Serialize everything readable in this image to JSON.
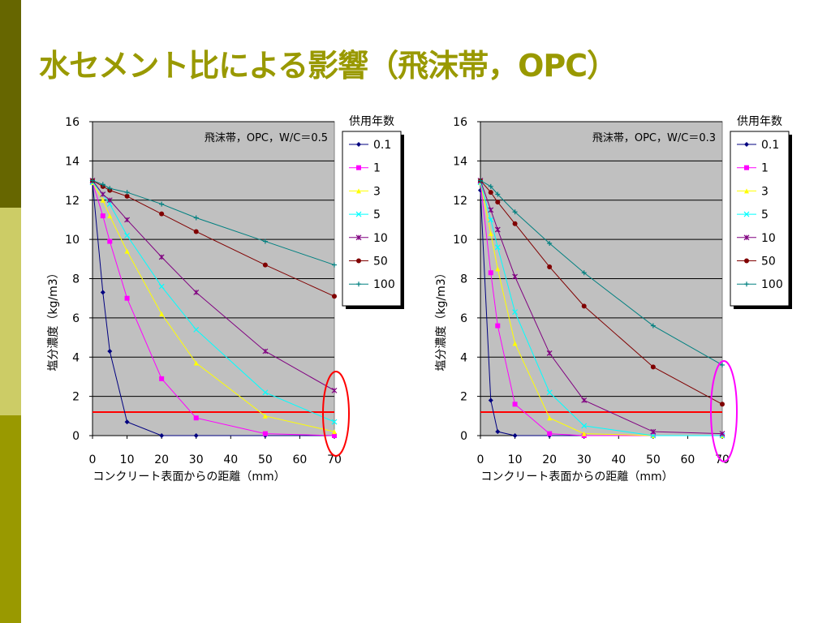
{
  "slide": {
    "title": "水セメント比による影響（飛沫帯，OPC）",
    "colors": {
      "title": "#999900",
      "sidebar_dark": "#666600",
      "sidebar_light": "#CCCC66",
      "sidebar_mid": "#999900"
    }
  },
  "chart_data": [
    {
      "type": "line",
      "title": "",
      "annotation": "飛沫帯，OPC，W/C＝0.5",
      "xlabel": "コンクリート表面からの距離（mm）",
      "ylabel": "塩分濃度（kg/m3）",
      "xlim": [
        0,
        70
      ],
      "ylim": [
        0,
        16
      ],
      "xticks": [
        0,
        10,
        20,
        30,
        40,
        50,
        60,
        70
      ],
      "yticks": [
        0,
        2,
        4,
        6,
        8,
        10,
        12,
        14,
        16
      ],
      "grid": true,
      "legend_title": "供用年数",
      "legend_position": "right",
      "threshold_line": {
        "value": 1.2,
        "color": "#FF0000"
      },
      "highlight_ellipse": {
        "x": 70,
        "color": "#FF0000"
      },
      "series": [
        {
          "name": "0.1",
          "color": "#000080",
          "marker": "diamond",
          "x": [
            0,
            3,
            5,
            10,
            20,
            30,
            50,
            70
          ],
          "y": [
            12.9,
            7.3,
            4.3,
            0.7,
            0.0,
            0.0,
            0.0,
            0.0
          ]
        },
        {
          "name": "1",
          "color": "#FF00FF",
          "marker": "square",
          "x": [
            0,
            3,
            5,
            10,
            20,
            30,
            50,
            70
          ],
          "y": [
            12.9,
            11.2,
            9.9,
            7.0,
            2.9,
            0.9,
            0.1,
            0.0
          ]
        },
        {
          "name": "3",
          "color": "#FFFF00",
          "marker": "triangle",
          "x": [
            0,
            3,
            5,
            10,
            20,
            30,
            50,
            70
          ],
          "y": [
            12.9,
            12.0,
            11.2,
            9.4,
            6.2,
            3.7,
            1.0,
            0.2
          ]
        },
        {
          "name": "5",
          "color": "#00FFFF",
          "marker": "x",
          "x": [
            0,
            3,
            5,
            10,
            20,
            30,
            50,
            70
          ],
          "y": [
            12.9,
            12.3,
            11.8,
            10.2,
            7.6,
            5.4,
            2.2,
            0.7
          ]
        },
        {
          "name": "10",
          "color": "#800080",
          "marker": "star",
          "x": [
            0,
            3,
            5,
            10,
            20,
            30,
            50,
            70
          ],
          "y": [
            13.0,
            12.3,
            12.0,
            11.0,
            9.1,
            7.3,
            4.3,
            2.3
          ]
        },
        {
          "name": "50",
          "color": "#800000",
          "marker": "circle",
          "x": [
            0,
            3,
            5,
            10,
            20,
            30,
            50,
            70
          ],
          "y": [
            13.0,
            12.7,
            12.5,
            12.2,
            11.3,
            10.4,
            8.7,
            7.1
          ]
        },
        {
          "name": "100",
          "color": "#008080",
          "marker": "plus",
          "x": [
            0,
            3,
            5,
            10,
            20,
            30,
            50,
            70
          ],
          "y": [
            13.0,
            12.8,
            12.6,
            12.4,
            11.8,
            11.1,
            9.9,
            8.7
          ]
        }
      ]
    },
    {
      "type": "line",
      "title": "",
      "annotation": "飛沫帯，OPC，W/C＝0.3",
      "xlabel": "コンクリート表面からの距離（mm）",
      "ylabel": "塩分濃度（kg/m3）",
      "xlim": [
        0,
        70
      ],
      "ylim": [
        0,
        16
      ],
      "xticks": [
        0,
        10,
        20,
        30,
        40,
        50,
        60,
        70
      ],
      "yticks": [
        0,
        2,
        4,
        6,
        8,
        10,
        12,
        14,
        16
      ],
      "grid": true,
      "legend_title": "供用年数",
      "legend_position": "right",
      "threshold_line": {
        "value": 1.2,
        "color": "#FF0000"
      },
      "highlight_ellipse": {
        "x": 70,
        "color": "#FF00FF"
      },
      "series": [
        {
          "name": "0.1",
          "color": "#000080",
          "marker": "diamond",
          "x": [
            0,
            3,
            5,
            10,
            20,
            30,
            50,
            70
          ],
          "y": [
            12.5,
            1.8,
            0.2,
            0.0,
            0.0,
            0.0,
            0.0,
            0.0
          ]
        },
        {
          "name": "1",
          "color": "#FF00FF",
          "marker": "square",
          "x": [
            0,
            3,
            5,
            10,
            20,
            30,
            50,
            70
          ],
          "y": [
            12.9,
            8.3,
            5.6,
            1.6,
            0.1,
            0.0,
            0.0,
            0.0
          ]
        },
        {
          "name": "3",
          "color": "#FFFF00",
          "marker": "triangle",
          "x": [
            0,
            3,
            5,
            10,
            20,
            30,
            50,
            70
          ],
          "y": [
            12.9,
            10.3,
            8.5,
            4.7,
            0.9,
            0.1,
            0.0,
            0.0
          ]
        },
        {
          "name": "5",
          "color": "#00FFFF",
          "marker": "x",
          "x": [
            0,
            3,
            5,
            10,
            20,
            30,
            50,
            70
          ],
          "y": [
            12.9,
            11.0,
            9.6,
            6.3,
            2.2,
            0.5,
            0.0,
            0.0
          ]
        },
        {
          "name": "10",
          "color": "#800080",
          "marker": "star",
          "x": [
            0,
            3,
            5,
            10,
            20,
            30,
            50,
            70
          ],
          "y": [
            13.0,
            11.5,
            10.5,
            8.1,
            4.2,
            1.8,
            0.2,
            0.1
          ]
        },
        {
          "name": "50",
          "color": "#800000",
          "marker": "circle",
          "x": [
            0,
            3,
            5,
            10,
            20,
            30,
            50,
            70
          ],
          "y": [
            13.0,
            12.4,
            11.9,
            10.8,
            8.6,
            6.6,
            3.5,
            1.6
          ]
        },
        {
          "name": "100",
          "color": "#008080",
          "marker": "plus",
          "x": [
            0,
            3,
            5,
            10,
            20,
            30,
            50,
            70
          ],
          "y": [
            13.0,
            12.7,
            12.3,
            11.4,
            9.8,
            8.3,
            5.6,
            3.6
          ]
        }
      ]
    }
  ]
}
